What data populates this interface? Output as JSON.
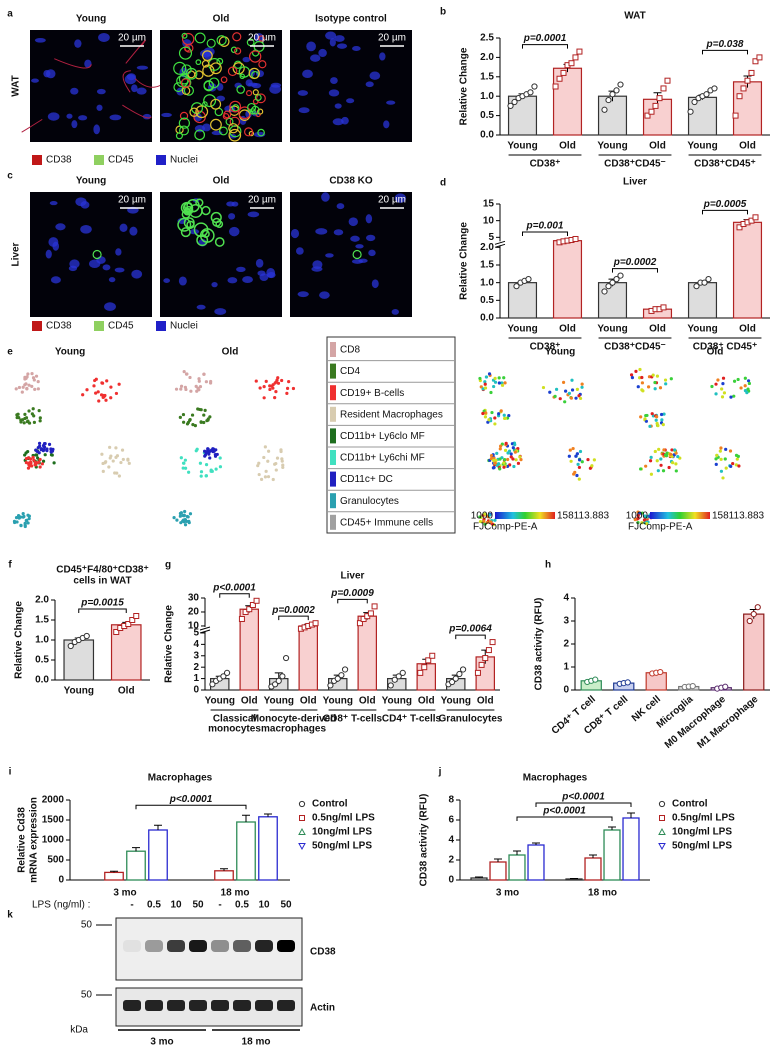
{
  "panel_a": {
    "label": "a",
    "columns": [
      "Young",
      "Old",
      "Isotype control"
    ],
    "scalebars": [
      "20 µm",
      "20 µm",
      "20 µm"
    ],
    "row": "WAT",
    "legend": [
      "CD38",
      "CD45",
      "Nuclei"
    ]
  },
  "panel_c": {
    "label": "c",
    "columns": [
      "Young",
      "Old",
      "CD38 KO"
    ],
    "scalebars": [
      "20 µm",
      "20 µm",
      "20 µm"
    ],
    "row": "Liver",
    "legend": [
      "CD38",
      "CD45",
      "Nuclei"
    ]
  },
  "panel_e": {
    "label": "e",
    "columns": [
      "Young",
      "Old"
    ],
    "columns2": [
      "Young",
      "Old"
    ],
    "legend": [
      "CD8",
      "CD4",
      "CD19+ B-cells",
      "Resident Macrophages",
      "CD11b+ Ly6clo MF",
      "CD11b+ Ly6chi MF",
      "CD11c+ DC",
      "Granulocytes",
      "CD45+ Immune cells"
    ],
    "colors": [
      "#d4a5a5",
      "#3a7a20",
      "#f03030",
      "#d8ccb0",
      "#1e6e1e",
      "#40e0c0",
      "#2020c0",
      "#2aa0b0",
      "#a0a0a0"
    ],
    "colorbar": {
      "min": "1000",
      "max": "158113.883",
      "name": "FJComp-PE-A"
    }
  },
  "panel_k": {
    "label": "k",
    "treatment": "LPS (ng/ml) :",
    "lanes": [
      "-",
      "0.5",
      "10",
      "50",
      "-",
      "0.5",
      "10",
      "50"
    ],
    "markers": [
      "50",
      "50"
    ],
    "blots": [
      "CD38",
      "Actin"
    ],
    "unit": "kDa",
    "groups": [
      "3 mo",
      "18 mo"
    ]
  },
  "chart_data": [
    {
      "type": "bar",
      "label": "b",
      "title": "WAT",
      "ylabel": "Relative Change",
      "ylim": [
        0,
        2.5
      ],
      "yticks": [
        {
          "value": 0,
          "label": "0.0"
        },
        {
          "value": 0.5,
          "label": "0.5"
        },
        {
          "value": 1,
          "label": "1.0"
        },
        {
          "value": 1.5,
          "label": "1.5"
        },
        {
          "value": 2,
          "label": "2.0"
        },
        {
          "value": 2.5,
          "label": "2.5"
        }
      ],
      "categories": [
        "Young",
        "Old",
        "Young",
        "Old",
        "Young",
        "Old"
      ],
      "values": [
        1.0,
        1.72,
        1.0,
        0.92,
        0.97,
        1.37
      ],
      "errors": [
        0.06,
        0.1,
        0.13,
        0.17,
        0.06,
        0.15
      ],
      "colors": [
        "#333333",
        "#b22222",
        "#333333",
        "#b22222",
        "#333333",
        "#b22222"
      ],
      "fills": [
        "#dddddd",
        "#f8d0d0",
        "#dddddd",
        "#f8d0d0",
        "#dddddd",
        "#f8d0d0"
      ],
      "markers": [
        "circle",
        "square",
        "circle",
        "square",
        "circle",
        "square"
      ],
      "points": [
        [
          0.75,
          0.85,
          0.95,
          1.0,
          1.05,
          1.1,
          1.25
        ],
        [
          1.25,
          1.45,
          1.6,
          1.8,
          1.85,
          2.0,
          2.15
        ],
        [
          0.65,
          0.9,
          1.05,
          1.15,
          1.3
        ],
        [
          0.5,
          0.6,
          0.75,
          0.95,
          1.2,
          1.4
        ],
        [
          0.6,
          0.85,
          0.95,
          1.0,
          1.05,
          1.15,
          1.2
        ],
        [
          0.5,
          1.0,
          1.2,
          1.4,
          1.6,
          1.9,
          2.0
        ]
      ],
      "groups": [
        "CD38⁺",
        "CD38⁺CD45⁻",
        "CD38⁺CD45⁺"
      ],
      "pvalues": [
        "p=0.0001",
        null,
        "p=0.038"
      ]
    },
    {
      "type": "bar",
      "label": "d",
      "title": "Liver",
      "ylabel": "Relative Change",
      "ylim": [
        0,
        15
      ],
      "ybreak": 2,
      "yticks": [
        {
          "value": 0,
          "label": "0.0"
        },
        {
          "value": 0.5,
          "label": "0.5"
        },
        {
          "value": 1,
          "label": "1.0"
        },
        {
          "value": 1.5,
          "label": "1.5"
        },
        {
          "value": 2,
          "label": "2.0"
        },
        5,
        10,
        15
      ],
      "categories": [
        "Young",
        "Old",
        "Young",
        "Old",
        "Young",
        "Old"
      ],
      "values": [
        1.0,
        4.0,
        1.0,
        0.25,
        1.0,
        9.5
      ],
      "errors": [
        0.05,
        0.3,
        0.1,
        0.03,
        0.05,
        0.8
      ],
      "colors": [
        "#333333",
        "#b22222",
        "#333333",
        "#b22222",
        "#333333",
        "#b22222"
      ],
      "fills": [
        "#dddddd",
        "#f8d0d0",
        "#dddddd",
        "#f8d0d0",
        "#dddddd",
        "#f8d0d0"
      ],
      "markers": [
        "circle",
        "square",
        "circle",
        "square",
        "circle",
        "square"
      ],
      "points": [
        [
          0.9,
          1.0,
          1.05,
          1.1
        ],
        [
          3.5,
          3.8,
          4.0,
          4.2,
          4.5
        ],
        [
          0.75,
          0.9,
          1.0,
          1.1,
          1.2
        ],
        [
          0.2,
          0.25,
          0.25,
          0.3
        ],
        [
          0.9,
          1.0,
          1.0,
          1.1
        ],
        [
          8,
          9,
          9.5,
          10,
          11
        ]
      ],
      "groups": [
        "CD38⁺",
        "CD38⁺CD45⁻",
        "CD38⁺ CD45⁺"
      ],
      "pvalues": [
        "p=0.001",
        "p=0.0002",
        "p=0.0005"
      ]
    },
    {
      "type": "bar",
      "label": "f",
      "title": [
        "CD45⁺F4/80⁺CD38⁺",
        "cells in WAT"
      ],
      "ylabel": "Relative Change",
      "ylim": [
        0,
        2
      ],
      "yticks": [
        {
          "value": 0,
          "label": "0.0"
        },
        {
          "value": 0.5,
          "label": "0.5"
        },
        {
          "value": 1,
          "label": "1.0"
        },
        {
          "value": 1.5,
          "label": "1.5"
        },
        {
          "value": 2,
          "label": "2.0"
        }
      ],
      "categories": [
        "Young",
        "Old"
      ],
      "values": [
        1.0,
        1.38
      ],
      "errors": [
        0.05,
        0.06
      ],
      "colors": [
        "#333333",
        "#b22222"
      ],
      "fills": [
        "#dddddd",
        "#f8d0d0"
      ],
      "markers": [
        "circle",
        "square"
      ],
      "points": [
        [
          0.85,
          0.95,
          1.0,
          1.05,
          1.1
        ],
        [
          1.2,
          1.3,
          1.35,
          1.4,
          1.5,
          1.6
        ]
      ],
      "pvalues": [
        "p=0.0015"
      ]
    },
    {
      "type": "bar",
      "label": "g",
      "title": "Liver",
      "ylabel": "Relative Change",
      "ylim": [
        0,
        30
      ],
      "ybreak": 5,
      "yticks": [
        0,
        1,
        2,
        3,
        4,
        5,
        10,
        20,
        30
      ],
      "categories": [
        "Young",
        "Old",
        "Young",
        "Old",
        "Young",
        "Old",
        "Young",
        "Old",
        "Young",
        "Old"
      ],
      "values": [
        1.0,
        22,
        1.0,
        10,
        1.0,
        17,
        1.0,
        2.3,
        1.0,
        2.9
      ],
      "errors": [
        0.2,
        2.5,
        0.5,
        1.2,
        0.3,
        2.5,
        0.3,
        0.4,
        0.3,
        0.6
      ],
      "colors": [
        "#333333",
        "#b22222",
        "#333333",
        "#b22222",
        "#333333",
        "#b22222",
        "#333333",
        "#b22222",
        "#333333",
        "#b22222"
      ],
      "fills": [
        "#dddddd",
        "#f8d0d0",
        "#dddddd",
        "#f8d0d0",
        "#dddddd",
        "#f8d0d0",
        "#dddddd",
        "#f8d0d0",
        "#dddddd",
        "#f8d0d0"
      ],
      "markers": [
        "circle",
        "square",
        "circle",
        "square",
        "circle",
        "square",
        "circle",
        "square",
        "circle",
        "square"
      ],
      "points": [
        [
          0.5,
          0.8,
          1.0,
          1.2,
          1.5
        ],
        [
          15,
          20,
          22,
          25,
          28
        ],
        [
          0.3,
          0.5,
          0.8,
          1.2,
          2.8
        ],
        [
          8,
          9,
          10,
          11,
          12
        ],
        [
          0.4,
          0.8,
          1.0,
          1.3,
          1.8
        ],
        [
          12,
          15,
          17,
          19,
          24
        ],
        [
          0.4,
          0.9,
          1.2,
          1.5
        ],
        [
          1.5,
          2.0,
          2.6,
          3.0
        ],
        [
          0.5,
          0.7,
          1.0,
          1.4,
          1.8
        ],
        [
          1.5,
          2.2,
          2.8,
          3.5,
          4.2
        ]
      ],
      "groups": [
        [
          "Classical",
          "monocytes"
        ],
        [
          "Monocyte-derived",
          "macrophages"
        ],
        "CD8⁺ T-cells",
        "CD4⁺ T-cells",
        "Granulocytes"
      ],
      "pvalues": [
        "p<0.0001",
        "p=0.0002",
        "p=0.0009",
        null,
        "p=0.0064"
      ]
    },
    {
      "type": "bar",
      "label": "h",
      "ylabel": "CD38 activity (RFU)",
      "ylim": [
        0,
        4
      ],
      "yticks": [
        0,
        1,
        2,
        3,
        4
      ],
      "categories": [
        "CD4⁺ T cell",
        "CD8⁺ T cell",
        "NK cell",
        "Microglia",
        "M0 Macrophage",
        "M1 Macrophage"
      ],
      "values": [
        0.4,
        0.3,
        0.75,
        0.15,
        0.1,
        3.3
      ],
      "errors": [
        0.05,
        0.03,
        0.03,
        0.02,
        0.03,
        0.2
      ],
      "colors": [
        "#2e8b57",
        "#1f3a93",
        "#c0392b",
        "#777777",
        "#5b2c6f",
        "#8b1a1a"
      ],
      "fills": [
        "#c9eec9",
        "#c8d0f0",
        "#f6c8c8",
        "#dddddd",
        "#dddddd",
        "#f6c8c8"
      ],
      "markers": [
        "circle",
        "circle",
        "circle",
        "circle",
        "circle",
        "circle"
      ],
      "points": [
        [
          0.35,
          0.4,
          0.45
        ],
        [
          0.27,
          0.3,
          0.33
        ],
        [
          0.72,
          0.75,
          0.78
        ],
        [
          0.13,
          0.15,
          0.17
        ],
        [
          0.06,
          0.1,
          0.14
        ],
        [
          3.0,
          3.3,
          3.6
        ]
      ]
    },
    {
      "type": "bar",
      "label": "i",
      "title": "Macrophages",
      "ylabel": [
        "Relative Cd38",
        "mRNA expression"
      ],
      "ylim": [
        0,
        2000
      ],
      "yticks": [
        0,
        500,
        1000,
        1500,
        2000
      ],
      "categories": [
        "3 mo",
        "18 mo"
      ],
      "series": [
        {
          "name": "Control",
          "color": "#333333",
          "marker": "circle",
          "values": [
            0,
            0
          ],
          "errors": [
            0,
            0
          ]
        },
        {
          "name": "0.5ng/ml LPS",
          "color": "#b22222",
          "marker": "square",
          "values": [
            190,
            230
          ],
          "errors": [
            30,
            50
          ]
        },
        {
          "name": "10ng/ml LPS",
          "color": "#2e8b57",
          "marker": "triangle",
          "values": [
            720,
            1450
          ],
          "errors": [
            90,
            170
          ]
        },
        {
          "name": "50ng/ml LPS",
          "color": "#2a2ad0",
          "marker": "down",
          "values": [
            1250,
            1580
          ],
          "errors": [
            120,
            70
          ]
        }
      ],
      "pvalues": [
        null,
        null,
        "p<0.0001",
        null
      ]
    },
    {
      "type": "bar",
      "label": "j",
      "title": "Macrophages",
      "ylabel": "CD38 activity (RFU)",
      "ylim": [
        0,
        8
      ],
      "yticks": [
        0,
        2,
        4,
        6,
        8
      ],
      "categories": [
        "3 mo",
        "18 mo"
      ],
      "series": [
        {
          "name": "Control",
          "color": "#333333",
          "marker": "circle",
          "values": [
            0.2,
            0.1
          ],
          "errors": [
            0.1,
            0.05
          ]
        },
        {
          "name": "0.5ng/ml LPS",
          "color": "#b22222",
          "marker": "square",
          "values": [
            1.8,
            2.2
          ],
          "errors": [
            0.3,
            0.3
          ]
        },
        {
          "name": "10ng/ml LPS",
          "color": "#2e8b57",
          "marker": "triangle",
          "values": [
            2.5,
            5.0
          ],
          "errors": [
            0.4,
            0.3
          ]
        },
        {
          "name": "50ng/ml LPS",
          "color": "#2a2ad0",
          "marker": "down",
          "values": [
            3.5,
            6.2
          ],
          "errors": [
            0.2,
            0.5
          ]
        }
      ],
      "pvalues": [
        null,
        null,
        "p<0.0001",
        "p<0.0001"
      ]
    }
  ]
}
